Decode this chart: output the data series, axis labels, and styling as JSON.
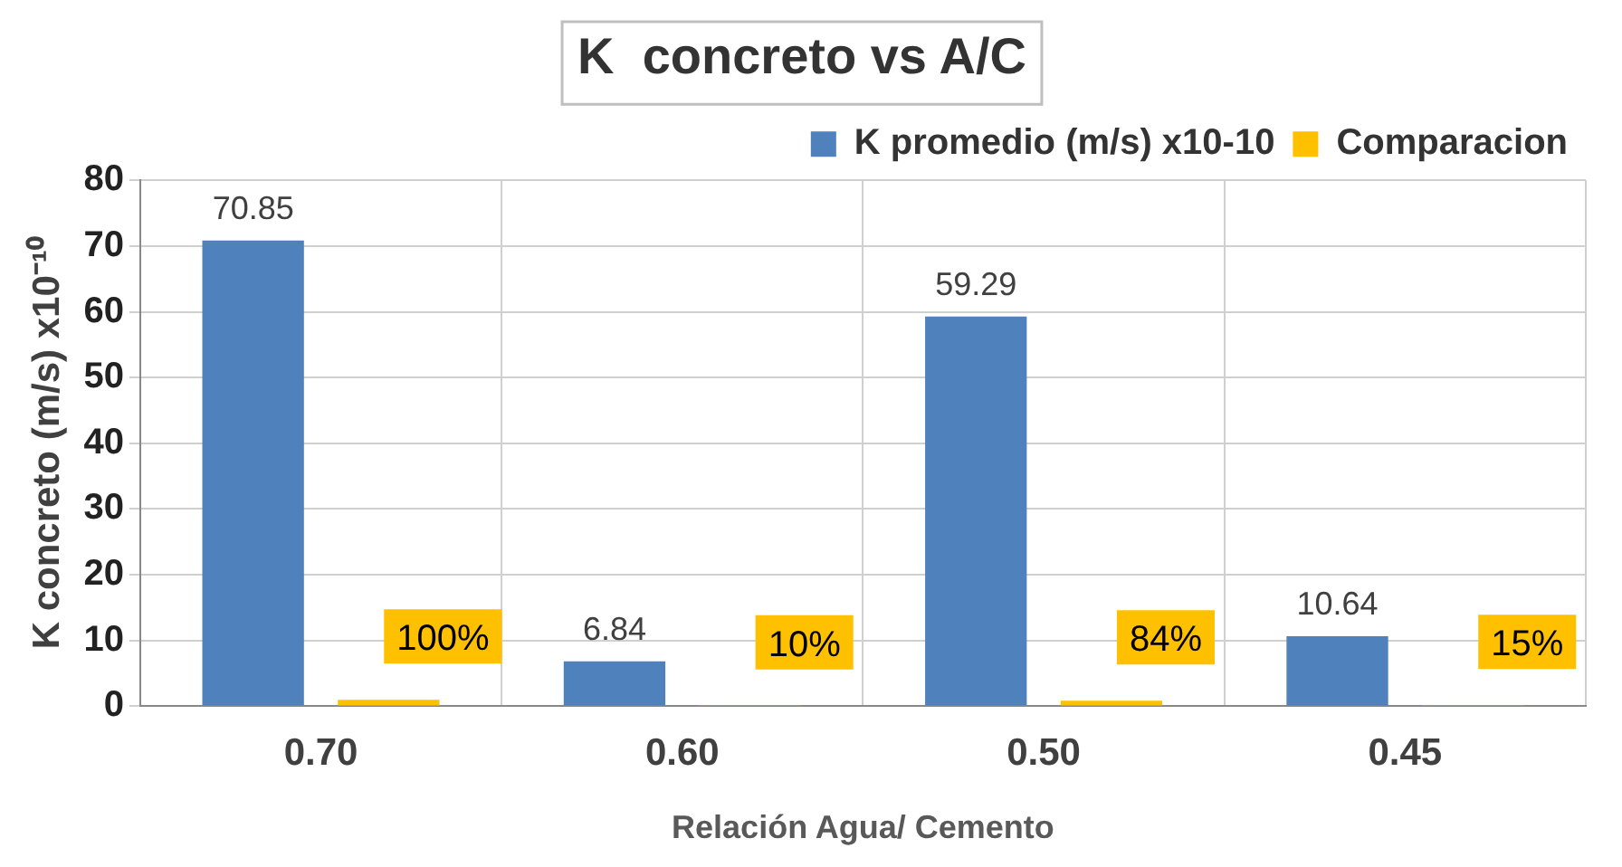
{
  "chart_data": {
    "type": "bar",
    "title": "K  concreto vs A/C",
    "xlabel": "Relación Agua/ Cemento",
    "ylabel": "K concreto (m/s) x10⁻¹⁰",
    "categories": [
      "0.70",
      "0.60",
      "0.50",
      "0.45"
    ],
    "series": [
      {
        "name": "K promedio (m/s) x10-10",
        "color": "#4f81bd",
        "values": [
          70.85,
          6.84,
          59.29,
          10.64
        ],
        "value_labels": [
          "70.85",
          "6.84",
          "59.29",
          "10.64"
        ]
      },
      {
        "name": "Comparacion",
        "color": "#ffc000",
        "values": [
          1,
          0.1,
          0.84,
          0.15
        ],
        "value_labels": [
          "100%",
          "10%",
          "84%",
          "15%"
        ]
      }
    ],
    "ylim": [
      0,
      80
    ],
    "yticks": [
      0,
      10,
      20,
      30,
      40,
      50,
      60,
      70,
      80
    ],
    "grid": true,
    "legend": "top right"
  }
}
